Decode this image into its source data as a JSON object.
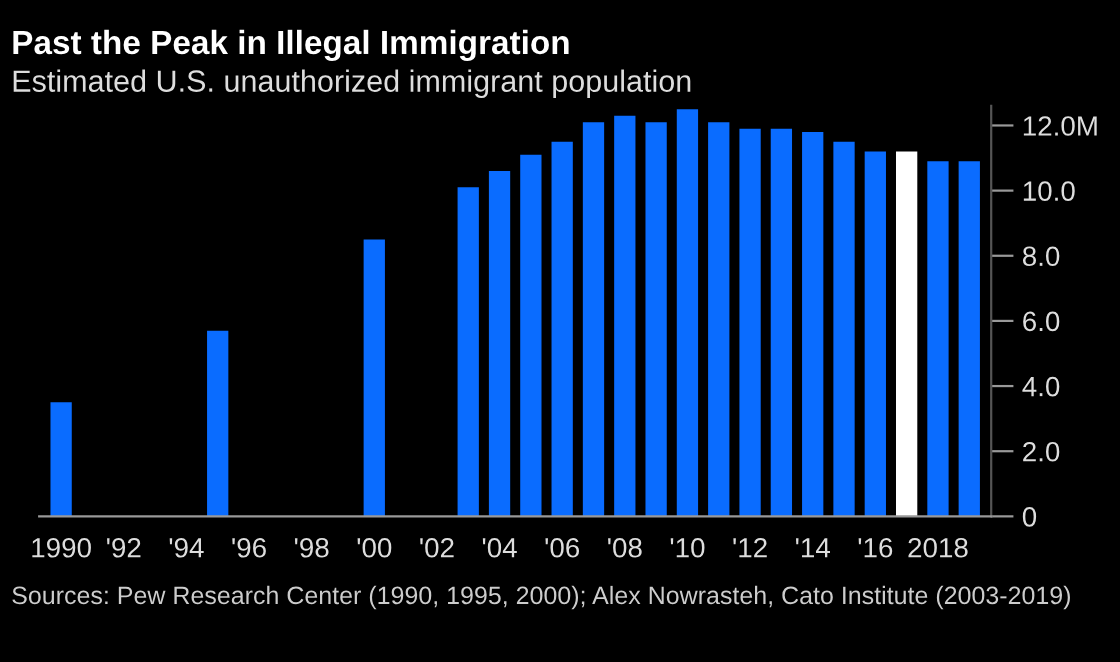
{
  "chart_data": {
    "type": "bar",
    "title": "Past the Peak in Illegal Immigration",
    "subtitle": "Estimated U.S. unauthorized immigrant population",
    "x": [
      1990,
      1995,
      2000,
      2003,
      2004,
      2005,
      2006,
      2007,
      2008,
      2009,
      2010,
      2011,
      2012,
      2013,
      2014,
      2015,
      2016,
      2017,
      2018,
      2019
    ],
    "values": [
      3.5,
      5.7,
      8.5,
      10.1,
      10.6,
      11.1,
      11.5,
      12.1,
      12.3,
      12.1,
      12.5,
      12.1,
      11.9,
      11.9,
      11.8,
      11.5,
      11.2,
      11.2,
      10.9,
      10.9
    ],
    "colors": [
      "#0a6cff",
      "#0a6cff",
      "#0a6cff",
      "#0a6cff",
      "#0a6cff",
      "#0a6cff",
      "#0a6cff",
      "#0a6cff",
      "#0a6cff",
      "#0a6cff",
      "#0a6cff",
      "#0a6cff",
      "#0a6cff",
      "#0a6cff",
      "#0a6cff",
      "#0a6cff",
      "#0a6cff",
      "#ffffff",
      "#0a6cff",
      "#0a6cff"
    ],
    "xlim": [
      1989.3,
      2019.7
    ],
    "ylim": [
      0,
      12.6
    ],
    "xticks": [
      {
        "value": 1990,
        "label": "1990"
      },
      {
        "value": 1992,
        "label": "'92"
      },
      {
        "value": 1994,
        "label": "'94"
      },
      {
        "value": 1996,
        "label": "'96"
      },
      {
        "value": 1998,
        "label": "'98"
      },
      {
        "value": 2000,
        "label": "'00"
      },
      {
        "value": 2002,
        "label": "'02"
      },
      {
        "value": 2004,
        "label": "'04"
      },
      {
        "value": 2006,
        "label": "'06"
      },
      {
        "value": 2008,
        "label": "'08"
      },
      {
        "value": 2010,
        "label": "'10"
      },
      {
        "value": 2012,
        "label": "'12"
      },
      {
        "value": 2014,
        "label": "'14"
      },
      {
        "value": 2016,
        "label": "'16"
      },
      {
        "value": 2018,
        "label": "2018"
      }
    ],
    "yticks": [
      0,
      {
        "value": 2,
        "label": "2.0"
      },
      {
        "value": 4,
        "label": "4.0"
      },
      {
        "value": 6,
        "label": "6.0"
      },
      {
        "value": 8,
        "label": "8.0"
      },
      {
        "value": 10,
        "label": "10.0"
      },
      {
        "value": 12,
        "label": "12.0M"
      }
    ],
    "grid": false,
    "annotations": [
      "Sources: Pew Research Center (1990, 1995, 2000); Alex Nowrasteh, Cato Institute (2003-2019)"
    ]
  }
}
